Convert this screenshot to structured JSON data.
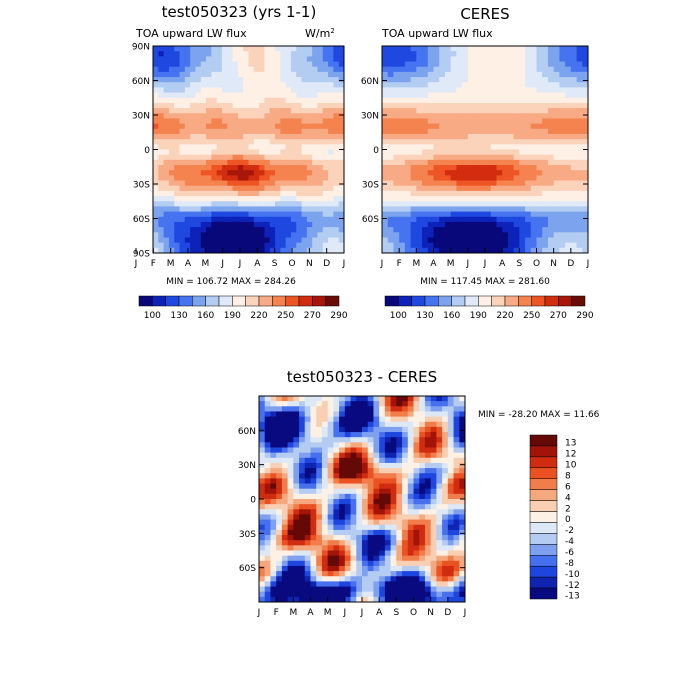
{
  "colors": {
    "seq": [
      "#08087a",
      "#0c22b8",
      "#1f48e0",
      "#4673f0",
      "#7ca4ee",
      "#b3ccf2",
      "#dfe9f8",
      "#fff0e6",
      "#fbd2ba",
      "#f8aa84",
      "#f4834f",
      "#ee5524",
      "#d32d10",
      "#a8160a",
      "#6a0c06"
    ],
    "div": [
      "#0a0a80",
      "#0f24b0",
      "#1e46de",
      "#4670ee",
      "#7fa0ef",
      "#b4cbf2",
      "#dde8f7",
      "#fdf1e5",
      "#f9cfb4",
      "#f5a77e",
      "#f17d4a",
      "#ea5222",
      "#cf2c11",
      "#a21408",
      "#650906"
    ]
  },
  "chart_data": [
    {
      "id": "model",
      "type": "heatmap",
      "title": "test050323 (yrs 1-1)",
      "left_label": "TOA upward LW flux",
      "units_base": "W/m",
      "units_sup": "2",
      "x_ticks": [
        "J",
        "F",
        "M",
        "A",
        "M",
        "J",
        "J",
        "A",
        "S",
        "O",
        "N",
        "D",
        "J"
      ],
      "y_ticks": [
        "90N",
        "60N",
        "30N",
        "0",
        "30S",
        "60S",
        "90S"
      ],
      "y_range": [
        -90,
        90
      ],
      "stats": "MIN = 106.72 MAX = 284.26",
      "min": 106.72,
      "max": 284.26,
      "colorbar": {
        "labels": [
          "100",
          "130",
          "160",
          "190",
          "220",
          "250",
          "270",
          "290"
        ],
        "levels": [
          100,
          115,
          130,
          145,
          160,
          175,
          190,
          205,
          220,
          235,
          250,
          260,
          270,
          280,
          290
        ]
      }
    },
    {
      "id": "obs",
      "type": "heatmap",
      "title": "CERES",
      "left_label": "TOA upward LW flux",
      "x_ticks": [
        "J",
        "F",
        "M",
        "A",
        "M",
        "J",
        "J",
        "A",
        "S",
        "O",
        "N",
        "D",
        "J"
      ],
      "y_ticks": [
        "60N",
        "30N",
        "0",
        "30S",
        "60S"
      ],
      "y_range": [
        -90,
        90
      ],
      "stats": "MIN = 117.45 MAX = 281.60",
      "min": 117.45,
      "max": 281.6,
      "colorbar": {
        "labels": [
          "100",
          "130",
          "160",
          "190",
          "220",
          "250",
          "270",
          "290"
        ],
        "levels": [
          100,
          115,
          130,
          145,
          160,
          175,
          190,
          205,
          220,
          235,
          250,
          260,
          270,
          280,
          290
        ]
      }
    },
    {
      "id": "diff",
      "type": "heatmap",
      "title": "test050323 - CERES",
      "x_ticks": [
        "J",
        "F",
        "M",
        "A",
        "M",
        "J",
        "J",
        "A",
        "S",
        "O",
        "N",
        "D",
        "J"
      ],
      "y_ticks": [
        "60N",
        "30N",
        "0",
        "30S",
        "60S"
      ],
      "y_range": [
        -90,
        90
      ],
      "stats": "MIN = -28.20 MAX =  11.66",
      "min": -28.2,
      "max": 11.66,
      "colorbar": {
        "labels": [
          "13",
          "12",
          "10",
          "8",
          "6",
          "4",
          "2",
          "0",
          "-2",
          "-4",
          "-6",
          "-8",
          "-10",
          "-12",
          "-13"
        ]
      }
    }
  ]
}
